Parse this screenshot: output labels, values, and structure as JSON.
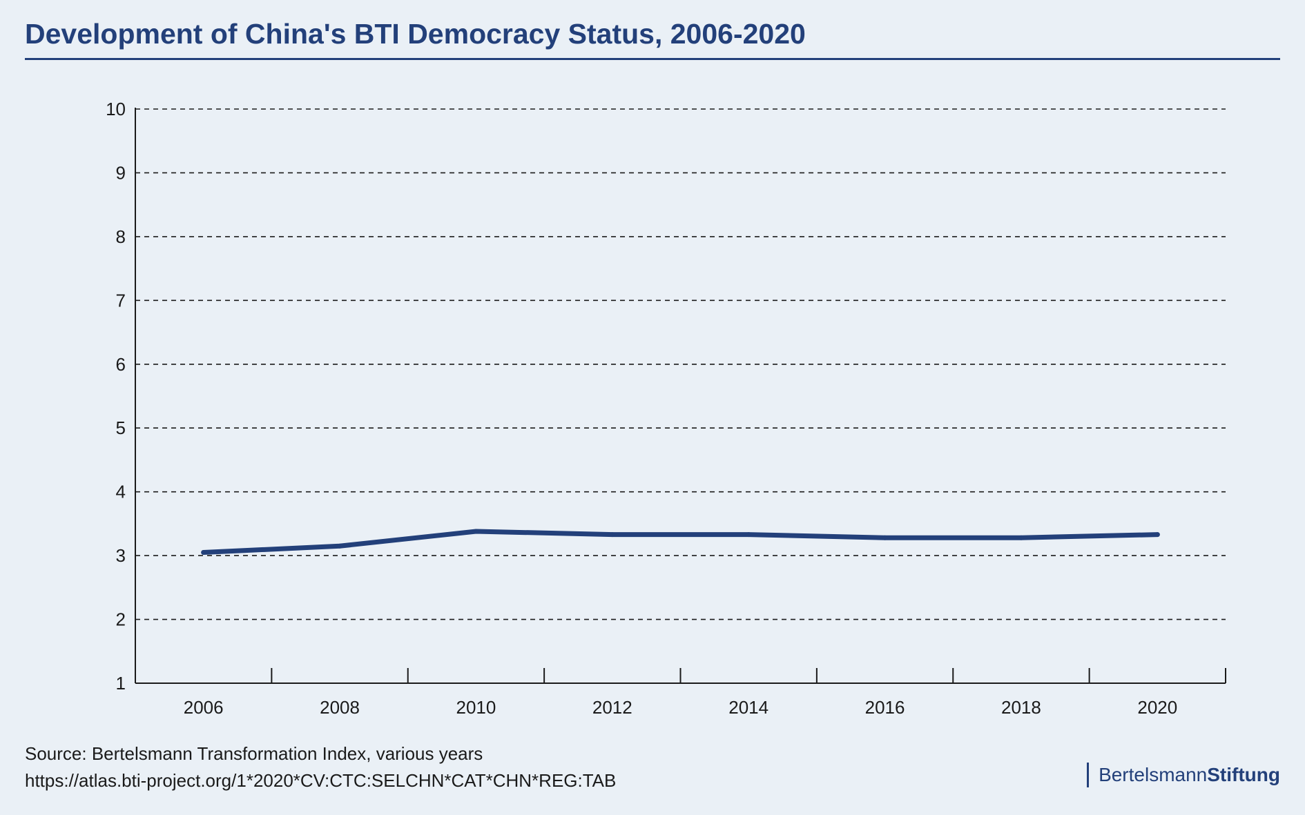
{
  "chart_data": {
    "type": "line",
    "title": "Development of China's BTI Democracy Status, 2006-2020",
    "xlabel": "",
    "ylabel": "",
    "x": [
      2006,
      2008,
      2010,
      2012,
      2014,
      2016,
      2018,
      2020
    ],
    "x_tick_labels": [
      "2006",
      "2008",
      "2010",
      "2012",
      "2014",
      "2016",
      "2018",
      "2020"
    ],
    "y_tick_labels": [
      "1",
      "2",
      "3",
      "4",
      "5",
      "6",
      "7",
      "8",
      "9",
      "10"
    ],
    "ylim": [
      1,
      10
    ],
    "grid": "horizontal dashed",
    "series": [
      {
        "name": "Democracy Status",
        "values": [
          3.05,
          3.15,
          3.38,
          3.33,
          3.33,
          3.28,
          3.28,
          3.33
        ]
      }
    ],
    "colors": {
      "line": "#23407a",
      "title": "#23407a",
      "axis": "#1a1a1a",
      "grid": "#1a1a1a"
    }
  },
  "footer": {
    "source": "Source: Bertelsmann Transformation Index, various years",
    "url": "https://atlas.bti-project.org/1*2020*CV:CTC:SELCHN*CAT*CHN*REG:TAB"
  },
  "brand": {
    "part1": "Bertelsmann",
    "part2": "Stiftung"
  }
}
